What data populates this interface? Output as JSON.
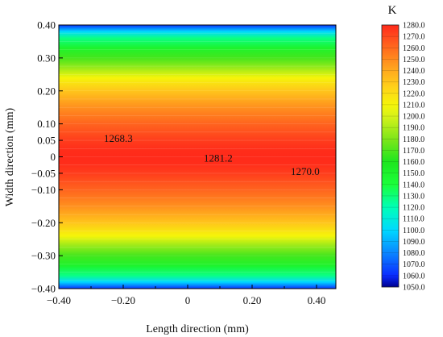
{
  "chart_data": {
    "type": "heatmap",
    "title": "",
    "xlabel": "Length direction (mm)",
    "ylabel": "Width direction (mm)",
    "xlim": [
      -0.4,
      0.46
    ],
    "ylim": [
      -0.4,
      0.4
    ],
    "x_ticks": [
      {
        "value": -0.4,
        "label": "−0.40"
      },
      {
        "value": -0.2,
        "label": "−0.20"
      },
      {
        "value": 0.0,
        "label": "0"
      },
      {
        "value": 0.2,
        "label": "0.20"
      },
      {
        "value": 0.4,
        "label": "0.40"
      }
    ],
    "y_ticks": [
      {
        "value": 0.4,
        "label": "0.40"
      },
      {
        "value": 0.3,
        "label": "0.30"
      },
      {
        "value": 0.2,
        "label": "0.20"
      },
      {
        "value": 0.1,
        "label": "0.10"
      },
      {
        "value": 0.05,
        "label": "0.05"
      },
      {
        "value": 0.0,
        "label": "0"
      },
      {
        "value": -0.05,
        "label": "−0.05"
      },
      {
        "value": -0.1,
        "label": "−0.10"
      },
      {
        "value": -0.2,
        "label": "−0.20"
      },
      {
        "value": -0.3,
        "label": "−0.30"
      },
      {
        "value": -0.4,
        "label": "−0.40"
      }
    ],
    "y_profile": [
      {
        "y": -0.4,
        "t": 1062
      },
      {
        "y": -0.38,
        "t": 1100
      },
      {
        "y": -0.36,
        "t": 1128
      },
      {
        "y": -0.33,
        "t": 1150
      },
      {
        "y": -0.3,
        "t": 1168
      },
      {
        "y": -0.27,
        "t": 1186
      },
      {
        "y": -0.24,
        "t": 1210
      },
      {
        "y": -0.2,
        "t": 1230
      },
      {
        "y": -0.15,
        "t": 1248
      },
      {
        "y": -0.1,
        "t": 1262
      },
      {
        "y": -0.05,
        "t": 1274
      },
      {
        "y": -0.02,
        "t": 1279
      },
      {
        "y": 0.0,
        "t": 1281
      },
      {
        "y": 0.02,
        "t": 1279
      },
      {
        "y": 0.05,
        "t": 1274
      },
      {
        "y": 0.1,
        "t": 1262
      },
      {
        "y": 0.15,
        "t": 1248
      },
      {
        "y": 0.2,
        "t": 1230
      },
      {
        "y": 0.24,
        "t": 1210
      },
      {
        "y": 0.27,
        "t": 1186
      },
      {
        "y": 0.3,
        "t": 1168
      },
      {
        "y": 0.33,
        "t": 1150
      },
      {
        "y": 0.36,
        "t": 1128
      },
      {
        "y": 0.38,
        "t": 1100
      },
      {
        "y": 0.4,
        "t": 1062
      }
    ],
    "annotations": [
      {
        "x": -0.26,
        "y": 0.055,
        "label": "1268.3"
      },
      {
        "x": 0.05,
        "y": -0.005,
        "label": "1281.2"
      },
      {
        "x": 0.32,
        "y": -0.045,
        "label": "1270.0"
      }
    ],
    "colorbar": {
      "unit": "K",
      "min": 1050.0,
      "max": 1280.0,
      "labels": [
        "1280.0",
        "1270.0",
        "1260.0",
        "1250.0",
        "1240.0",
        "1230.0",
        "1220.0",
        "1210.0",
        "1200.0",
        "1190.0",
        "1180.0",
        "1170.0",
        "1160.0",
        "1150.0",
        "1140.0",
        "1130.0",
        "1120.0",
        "1110.0",
        "1100.0",
        "1090.0",
        "1080.0",
        "1070.0",
        "1060.0",
        "1050.0"
      ],
      "colors": [
        {
          "v": 1050,
          "c": "#00008f"
        },
        {
          "v": 1060,
          "c": "#0a2bff"
        },
        {
          "v": 1080,
          "c": "#0a86ff"
        },
        {
          "v": 1100,
          "c": "#00d9ff"
        },
        {
          "v": 1120,
          "c": "#00ffb6"
        },
        {
          "v": 1140,
          "c": "#1bff3a"
        },
        {
          "v": 1160,
          "c": "#1ee61e"
        },
        {
          "v": 1180,
          "c": "#7fe61a"
        },
        {
          "v": 1200,
          "c": "#d7f21a"
        },
        {
          "v": 1210,
          "c": "#f5f50a"
        },
        {
          "v": 1225,
          "c": "#ffd21a"
        },
        {
          "v": 1240,
          "c": "#ffaa1e"
        },
        {
          "v": 1255,
          "c": "#ff7a1e"
        },
        {
          "v": 1270,
          "c": "#ff4a1e"
        },
        {
          "v": 1280,
          "c": "#ff2a1a"
        }
      ]
    }
  }
}
